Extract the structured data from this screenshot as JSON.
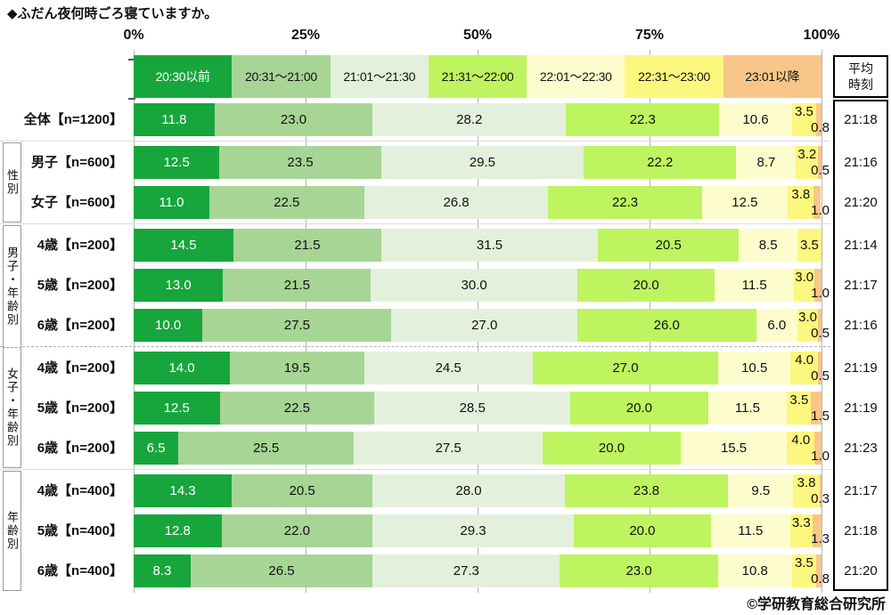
{
  "footer": {
    "copyright": "©学研教育総合研究所"
  },
  "chart_data": {
    "type": "bar",
    "stacked": true,
    "orientation": "horizontal",
    "title": "◆ふだん夜何時ごろ寝ていますか。",
    "x_ticks": [
      "0%",
      "25%",
      "50%",
      "75%",
      "100%"
    ],
    "xlim": [
      0,
      100
    ],
    "unit": "%",
    "legend_position": "top",
    "avg_column_header": "平均時刻",
    "avg_header_lines": [
      "平均",
      "時刻"
    ],
    "series": [
      {
        "name": "20:30以前",
        "color": "#17a63c",
        "text_color": "#ffffff"
      },
      {
        "name": "20:31～21:00",
        "color": "#a7d595",
        "text_color": "#111111"
      },
      {
        "name": "21:01～21:30",
        "color": "#e3f1dc",
        "text_color": "#111111"
      },
      {
        "name": "21:31～22:00",
        "color": "#bef45f",
        "text_color": "#111111"
      },
      {
        "name": "22:01～22:30",
        "color": "#fdfccd",
        "text_color": "#111111"
      },
      {
        "name": "22:31～23:00",
        "color": "#fcf77e",
        "text_color": "#111111"
      },
      {
        "name": "23:01以降",
        "color": "#f9c689",
        "text_color": "#111111"
      }
    ],
    "groups": [
      {
        "name": "",
        "rows": [
          {
            "label": "全体【n=1200】",
            "values": [
              11.8,
              23.0,
              28.2,
              22.3,
              10.6,
              3.5,
              0.8
            ],
            "avg": "21:18"
          }
        ]
      },
      {
        "name": "性別",
        "rows": [
          {
            "label": "男子【n=600】",
            "values": [
              12.5,
              23.5,
              29.5,
              22.2,
              8.7,
              3.2,
              0.5
            ],
            "avg": "21:16"
          },
          {
            "label": "女子【n=600】",
            "values": [
              11.0,
              22.5,
              26.8,
              22.3,
              12.5,
              3.8,
              1.0
            ],
            "avg": "21:20"
          }
        ]
      },
      {
        "name": "男子・年齢別",
        "dashed_with_next": true,
        "rows": [
          {
            "label": "4歳【n=200】",
            "values": [
              14.5,
              21.5,
              31.5,
              20.5,
              8.5,
              3.5,
              0.0
            ],
            "avg": "21:14"
          },
          {
            "label": "5歳【n=200】",
            "values": [
              13.0,
              21.5,
              30.0,
              20.0,
              11.5,
              3.0,
              1.0
            ],
            "avg": "21:17"
          },
          {
            "label": "6歳【n=200】",
            "values": [
              10.0,
              27.5,
              27.0,
              26.0,
              6.0,
              3.0,
              0.5
            ],
            "avg": "21:16"
          }
        ]
      },
      {
        "name": "女子・年齢別",
        "rows": [
          {
            "label": "4歳【n=200】",
            "values": [
              14.0,
              19.5,
              24.5,
              27.0,
              10.5,
              4.0,
              0.5
            ],
            "avg": "21:19"
          },
          {
            "label": "5歳【n=200】",
            "values": [
              12.5,
              22.5,
              28.5,
              20.0,
              11.5,
              3.5,
              1.5
            ],
            "avg": "21:19"
          },
          {
            "label": "6歳【n=200】",
            "values": [
              6.5,
              25.5,
              27.5,
              20.0,
              15.5,
              4.0,
              1.0
            ],
            "avg": "21:23"
          }
        ]
      },
      {
        "name": "年齢別",
        "rows": [
          {
            "label": "4歳【n=400】",
            "values": [
              14.3,
              20.5,
              28.0,
              23.8,
              9.5,
              3.8,
              0.3
            ],
            "avg": "21:17"
          },
          {
            "label": "5歳【n=400】",
            "values": [
              12.8,
              22.0,
              29.3,
              20.0,
              11.5,
              3.3,
              1.3
            ],
            "avg": "21:18"
          },
          {
            "label": "6歳【n=400】",
            "values": [
              8.3,
              26.5,
              27.3,
              23.0,
              10.8,
              3.5,
              0.8
            ],
            "avg": "21:20"
          }
        ]
      }
    ]
  }
}
